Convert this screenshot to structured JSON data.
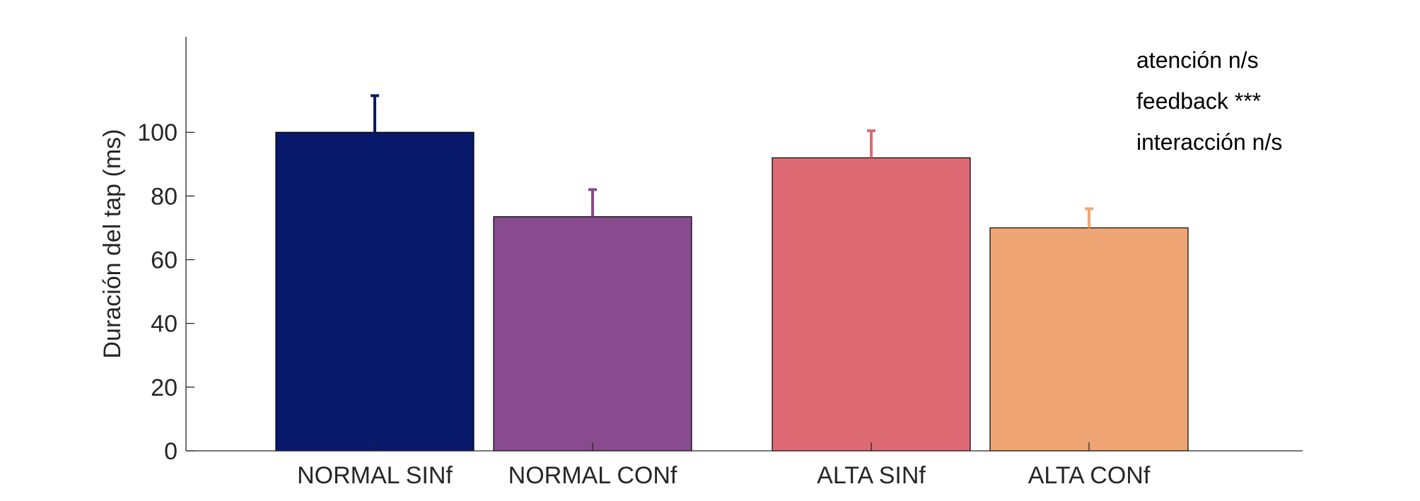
{
  "chart_data": {
    "type": "bar",
    "categories": [
      "NORMAL SINf",
      "NORMAL CONf",
      "ALTA SINf",
      "ALTA CONf"
    ],
    "values": [
      100,
      73.5,
      92,
      70
    ],
    "errors": [
      11.5,
      8.5,
      8.5,
      6
    ],
    "colors": [
      "#08186a",
      "#874b8e",
      "#de6b74",
      "#efa573"
    ],
    "groups": [
      [
        0,
        1
      ],
      [
        2,
        3
      ]
    ],
    "ylabel": "Duración del tap (ms)",
    "xlabel": "",
    "ylim": [
      0,
      130
    ],
    "yticks": [
      0,
      20,
      40,
      60,
      80,
      100
    ],
    "grid": false,
    "annotations": [
      "atención n/s",
      "feedback ***",
      "interacción n/s"
    ]
  }
}
